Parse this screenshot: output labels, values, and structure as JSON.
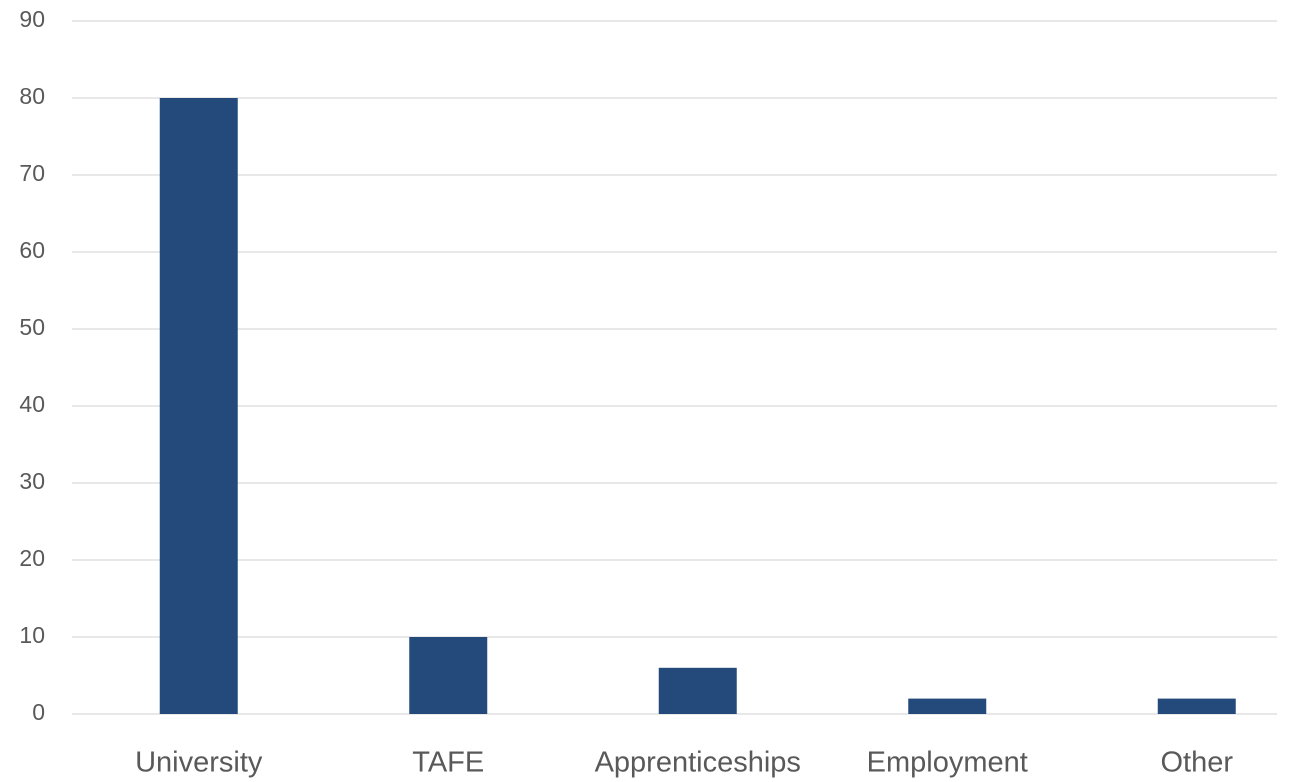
{
  "chart_data": {
    "type": "bar",
    "categories": [
      "University",
      "TAFE",
      "Apprenticeships",
      "Employment",
      "Other"
    ],
    "values": [
      80,
      10,
      6,
      2,
      2
    ],
    "color": "#234a7b",
    "ylim": [
      0,
      90
    ],
    "yticks": [
      0,
      10,
      20,
      30,
      40,
      50,
      60,
      70,
      80,
      90
    ],
    "grid": true
  }
}
